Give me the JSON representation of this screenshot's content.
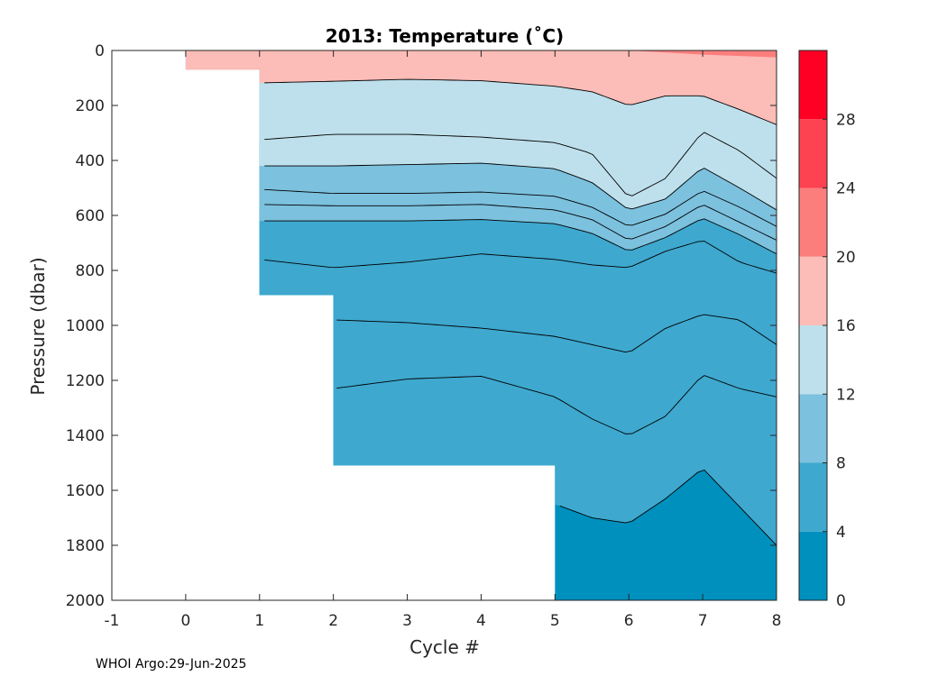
{
  "chart_data": {
    "type": "heatmap",
    "title": "2013:  Temperature (˚C)",
    "xlabel": "Cycle #",
    "ylabel": "Pressure (dbar)",
    "xlim": [
      -1,
      8
    ],
    "ylim": [
      0,
      2000
    ],
    "y_reversed": true,
    "xticks": [
      -1,
      0,
      1,
      2,
      3,
      4,
      5,
      6,
      7,
      8
    ],
    "yticks": [
      0,
      200,
      400,
      600,
      800,
      1000,
      1200,
      1400,
      1600,
      1800,
      2000
    ],
    "grid": false,
    "colorbar": {
      "ticks": [
        0,
        4,
        8,
        12,
        16,
        20,
        24,
        28
      ],
      "range": [
        0,
        32
      ],
      "bands": [
        {
          "min": 0,
          "max": 4,
          "color": "#0090BD"
        },
        {
          "min": 4,
          "max": 8,
          "color": "#3EA8CF"
        },
        {
          "min": 8,
          "max": 12,
          "color": "#7CC1DE"
        },
        {
          "min": 12,
          "max": 16,
          "color": "#BEE0EC"
        },
        {
          "min": 16,
          "max": 20,
          "color": "#FCBCB7"
        },
        {
          "min": 20,
          "max": 24,
          "color": "#FB7E7D"
        },
        {
          "min": 24,
          "max": 28,
          "color": "#FD4251"
        },
        {
          "min": 28,
          "max": 32,
          "color": "#FF0025"
        }
      ]
    },
    "coverage": [
      {
        "cycle": 0,
        "max_pressure": 70
      },
      {
        "cycle": 1,
        "max_pressure": 890
      },
      {
        "cycle": 2,
        "max_pressure": 1510
      },
      {
        "cycle": 5,
        "max_pressure": 2000
      },
      {
        "cycle": 8,
        "max_pressure": 2000
      }
    ],
    "contours": [
      {
        "name": "18",
        "x": [
          1,
          2,
          3,
          4,
          4.5,
          5,
          5.5,
          6,
          6.5,
          7,
          7.5,
          8
        ],
        "y": [
          118,
          112,
          105,
          110,
          120,
          130,
          150,
          200,
          165,
          165,
          215,
          270
        ]
      },
      {
        "name": "14",
        "x": [
          1,
          2,
          3,
          4,
          5,
          5.5,
          6,
          6.5,
          7,
          7.5,
          8
        ],
        "y": [
          325,
          305,
          305,
          315,
          335,
          375,
          535,
          465,
          295,
          365,
          465
        ]
      },
      {
        "name": "12",
        "x": [
          1,
          2,
          3,
          4,
          5,
          5.5,
          6,
          6.5,
          7,
          7.5,
          8
        ],
        "y": [
          420,
          420,
          415,
          410,
          430,
          480,
          580,
          540,
          425,
          500,
          580
        ]
      },
      {
        "name": "10",
        "x": [
          1,
          2,
          3,
          4,
          5,
          5.5,
          6,
          6.5,
          7,
          7.5,
          8
        ],
        "y": [
          505,
          520,
          520,
          515,
          530,
          570,
          640,
          595,
          510,
          570,
          640
        ]
      },
      {
        "name": "9",
        "x": [
          1,
          2,
          3,
          4,
          5,
          5.5,
          6,
          6.5,
          7,
          7.5,
          8
        ],
        "y": [
          560,
          565,
          565,
          560,
          580,
          615,
          690,
          640,
          560,
          625,
          690
        ]
      },
      {
        "name": "8",
        "x": [
          1,
          2,
          3,
          4,
          5,
          5.5,
          6,
          6.5,
          7,
          7.5,
          8
        ],
        "y": [
          620,
          620,
          620,
          615,
          630,
          665,
          730,
          680,
          610,
          670,
          740
        ]
      },
      {
        "name": "7",
        "x": [
          1,
          2,
          3,
          4,
          5,
          5.5,
          6,
          6.5,
          7,
          7.5,
          8
        ],
        "y": [
          760,
          790,
          770,
          740,
          760,
          780,
          790,
          730,
          690,
          770,
          810
        ]
      },
      {
        "name": "6",
        "x": [
          2,
          3,
          4,
          5,
          5.5,
          6,
          6.5,
          7,
          7.5,
          8
        ],
        "y": [
          980,
          990,
          1010,
          1040,
          1070,
          1100,
          1010,
          960,
          980,
          1070
        ]
      },
      {
        "name": "5",
        "x": [
          2,
          3,
          4,
          5,
          5.5,
          6,
          6.5,
          7,
          7.5,
          8
        ],
        "y": [
          1230,
          1195,
          1185,
          1260,
          1340,
          1400,
          1330,
          1180,
          1230,
          1260
        ]
      },
      {
        "name": "4",
        "x": [
          5,
          5.5,
          6,
          6.5,
          7,
          7.5,
          8
        ],
        "y": [
          1650,
          1700,
          1720,
          1630,
          1520,
          1660,
          1800
        ]
      }
    ],
    "footer": "WHOI Argo:29-Jun-2025"
  }
}
